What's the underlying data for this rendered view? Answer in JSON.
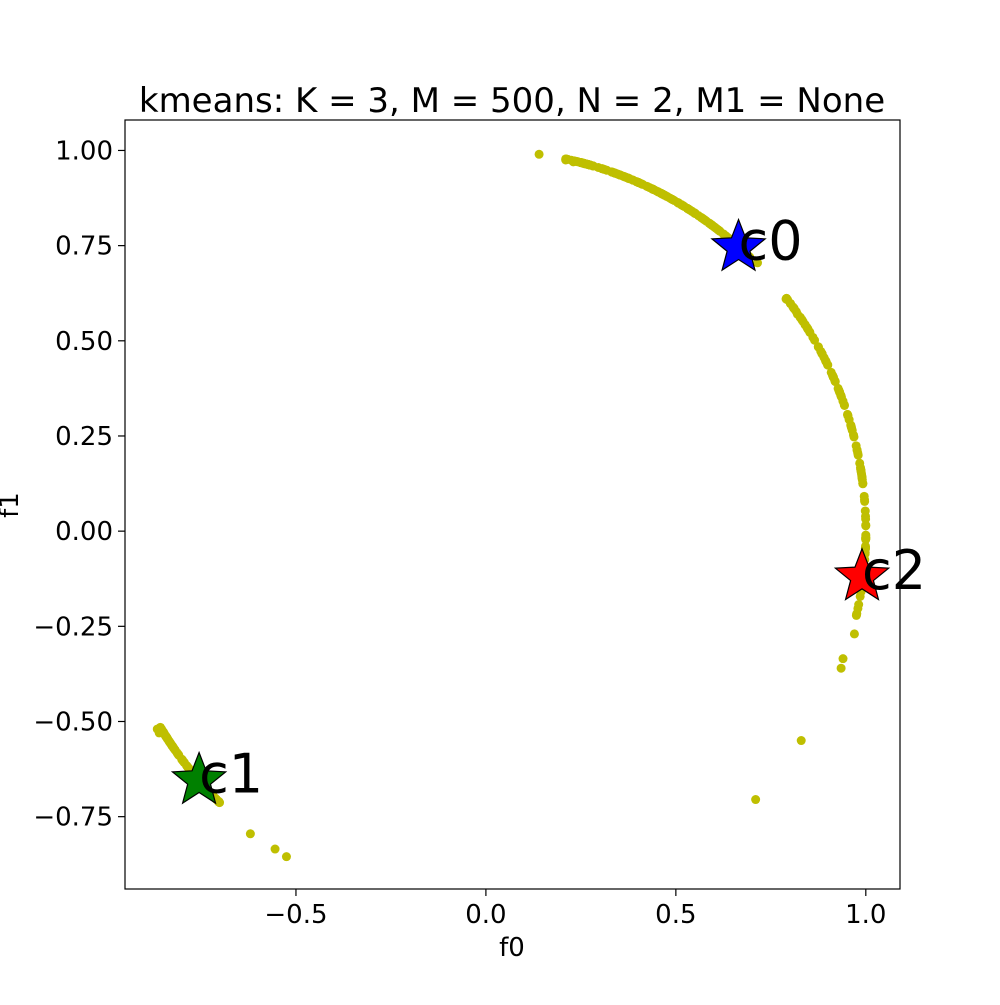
{
  "chart_data": {
    "type": "scatter",
    "title": "kmeans: K = 3, M = 500, N = 2, M1 = None",
    "xlabel": "f0",
    "ylabel": "f1",
    "xlim": [
      -0.95,
      1.09
    ],
    "ylim": [
      -0.94,
      1.08
    ],
    "x_ticks": [
      -0.5,
      0.0,
      0.5,
      1.0
    ],
    "x_tick_labels": [
      "−0.5",
      "0.0",
      "0.5",
      "1.0"
    ],
    "y_ticks": [
      1.0,
      0.75,
      0.5,
      0.25,
      0.0,
      -0.25,
      -0.5,
      -0.75
    ],
    "y_tick_labels": [
      "1.00",
      "0.75",
      "0.50",
      "0.25",
      "0.00",
      "−0.25",
      "−0.50",
      "−0.75"
    ],
    "grid": false,
    "point_color": "#bfbf00",
    "points": {
      "arcs": [
        {
          "from_deg": 46,
          "to_deg": 78,
          "count": 190
        },
        {
          "from_deg": -13,
          "to_deg": 38,
          "count": 120
        },
        {
          "from_deg": 211,
          "to_deg": 226,
          "count": 110
        }
      ],
      "x": [
        0.14,
        0.21,
        0.23,
        0.26,
        0.715,
        0.79,
        0.82,
        0.845,
        0.97,
        0.94,
        0.935,
        0.83,
        0.71,
        -0.865,
        -0.86,
        -0.62,
        -0.555,
        -0.525
      ],
      "y": [
        0.99,
        0.975,
        0.97,
        0.965,
        0.705,
        0.61,
        0.57,
        0.535,
        -0.27,
        -0.335,
        -0.36,
        -0.55,
        -0.705,
        -0.52,
        -0.53,
        -0.795,
        -0.835,
        -0.855
      ]
    },
    "centers": [
      {
        "label": "c0",
        "x": 0.665,
        "y": 0.745,
        "color": "#0000ff"
      },
      {
        "label": "c1",
        "x": -0.755,
        "y": -0.655,
        "color": "#008000"
      },
      {
        "label": "c2",
        "x": 0.99,
        "y": -0.12,
        "color": "#ff0000"
      }
    ]
  }
}
